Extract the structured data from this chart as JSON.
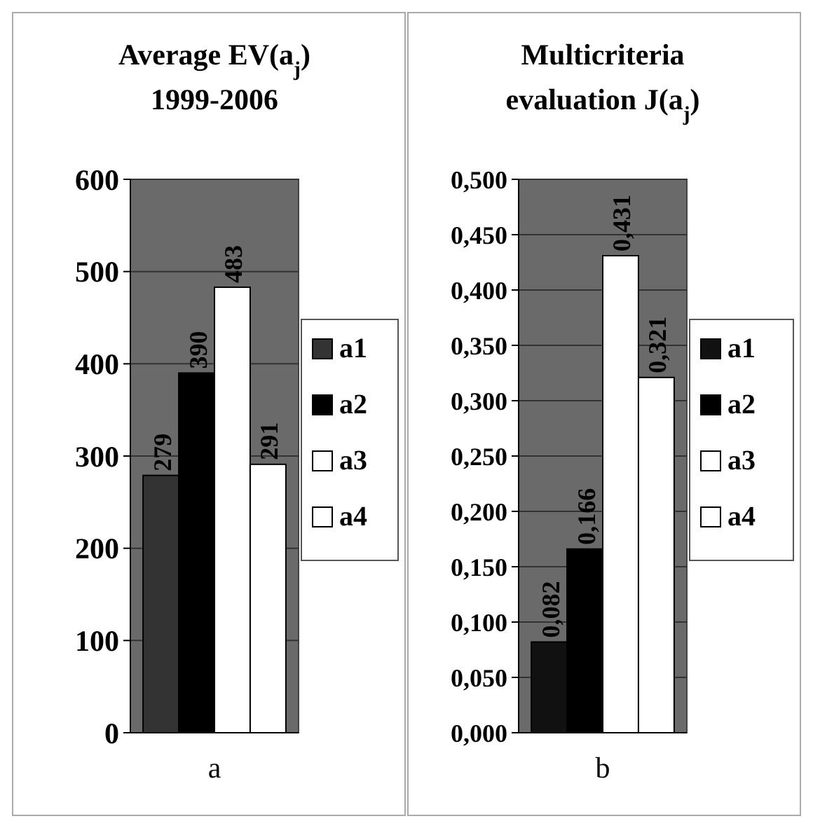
{
  "chart_data": [
    {
      "type": "bar",
      "title": "Average EV(a$_{j}$)\n1999-2006",
      "categories": [
        "a"
      ],
      "ylim": [
        0,
        600
      ],
      "yticks": [
        0,
        100,
        200,
        300,
        400,
        500,
        600
      ],
      "grid": "y",
      "legend": "right",
      "series": [
        {
          "name": "a1",
          "color": "#333333",
          "values": [
            279
          ],
          "value_labels": [
            "279"
          ]
        },
        {
          "name": "a2",
          "color": "#000000",
          "values": [
            390
          ],
          "value_labels": [
            "390"
          ]
        },
        {
          "name": "a3",
          "color": "#ffffff",
          "values": [
            483
          ],
          "value_labels": [
            "483"
          ]
        },
        {
          "name": "a4",
          "color": "#ffffff",
          "values": [
            291
          ],
          "value_labels": [
            "291"
          ]
        }
      ]
    },
    {
      "type": "bar",
      "title": "Multicriteria\nevaluation J(a$_{j}$)",
      "categories": [
        "b"
      ],
      "ylim": [
        0,
        0.5
      ],
      "yticks": [
        {
          "value": 0,
          "label": "0,000"
        },
        {
          "value": 0.05,
          "label": "0,050"
        },
        {
          "value": 0.1,
          "label": "0,100"
        },
        {
          "value": 0.15,
          "label": "0,150"
        },
        {
          "value": 0.2,
          "label": "0,200"
        },
        {
          "value": 0.25,
          "label": "0,250"
        },
        {
          "value": 0.3,
          "label": "0,300"
        },
        {
          "value": 0.35,
          "label": "0,350"
        },
        {
          "value": 0.4,
          "label": "0,400"
        },
        {
          "value": 0.45,
          "label": "0,450"
        },
        {
          "value": 0.5,
          "label": "0,500"
        }
      ],
      "grid": "y",
      "legend": "right",
      "series": [
        {
          "name": "a1",
          "color": "#111111",
          "values": [
            0.082
          ],
          "value_labels": [
            "0,082"
          ]
        },
        {
          "name": "a2",
          "color": "#000000",
          "values": [
            0.166
          ],
          "value_labels": [
            "0,166"
          ]
        },
        {
          "name": "a3",
          "color": "#ffffff",
          "values": [
            0.431
          ],
          "value_labels": [
            "0,431"
          ]
        },
        {
          "name": "a4",
          "color": "#ffffff",
          "values": [
            0.321
          ],
          "value_labels": [
            "0,321"
          ]
        }
      ]
    }
  ]
}
